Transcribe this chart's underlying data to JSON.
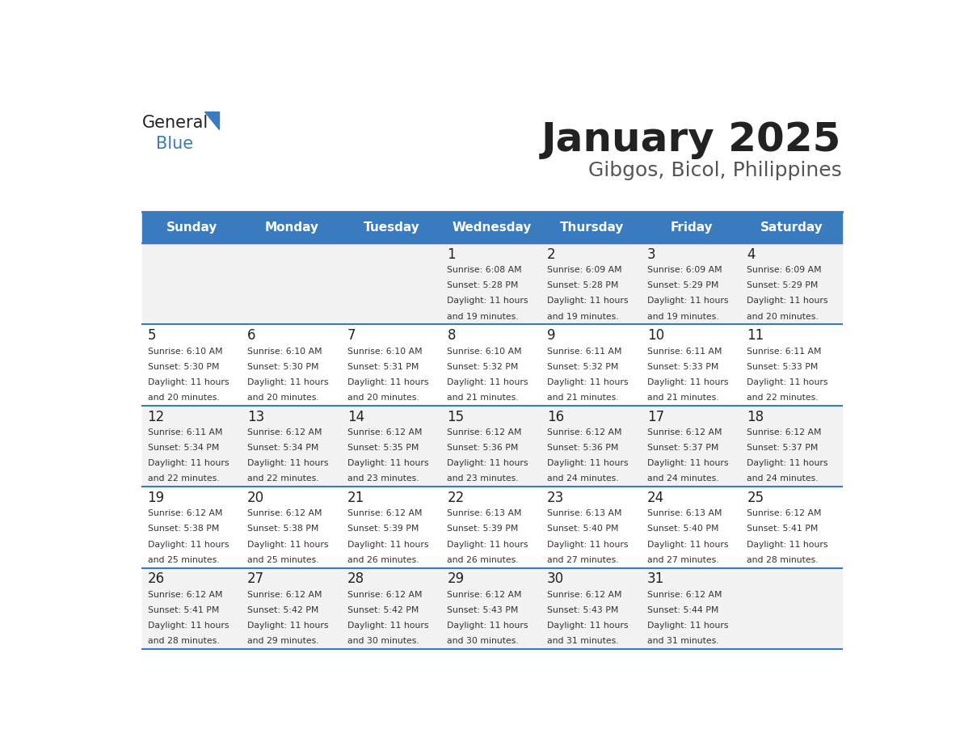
{
  "title": "January 2025",
  "subtitle": "Gibgos, Bicol, Philippines",
  "days_of_week": [
    "Sunday",
    "Monday",
    "Tuesday",
    "Wednesday",
    "Thursday",
    "Friday",
    "Saturday"
  ],
  "header_bg": "#3a7abf",
  "header_text": "#ffffff",
  "row_bg_odd": "#f2f2f2",
  "row_bg_even": "#ffffff",
  "cell_text_color": "#333333",
  "day_num_color": "#222222",
  "title_color": "#222222",
  "subtitle_color": "#555555",
  "divider_color": "#3a7abf",
  "logo_general_color": "#222222",
  "logo_blue_color": "#3a7abf",
  "calendar": [
    [
      {
        "day": null,
        "sunrise": null,
        "sunset": null,
        "daylight": null
      },
      {
        "day": null,
        "sunrise": null,
        "sunset": null,
        "daylight": null
      },
      {
        "day": null,
        "sunrise": null,
        "sunset": null,
        "daylight": null
      },
      {
        "day": 1,
        "sunrise": "6:08 AM",
        "sunset": "5:28 PM",
        "daylight": "11 hours and 19 minutes."
      },
      {
        "day": 2,
        "sunrise": "6:09 AM",
        "sunset": "5:28 PM",
        "daylight": "11 hours and 19 minutes."
      },
      {
        "day": 3,
        "sunrise": "6:09 AM",
        "sunset": "5:29 PM",
        "daylight": "11 hours and 19 minutes."
      },
      {
        "day": 4,
        "sunrise": "6:09 AM",
        "sunset": "5:29 PM",
        "daylight": "11 hours and 20 minutes."
      }
    ],
    [
      {
        "day": 5,
        "sunrise": "6:10 AM",
        "sunset": "5:30 PM",
        "daylight": "11 hours and 20 minutes."
      },
      {
        "day": 6,
        "sunrise": "6:10 AM",
        "sunset": "5:30 PM",
        "daylight": "11 hours and 20 minutes."
      },
      {
        "day": 7,
        "sunrise": "6:10 AM",
        "sunset": "5:31 PM",
        "daylight": "11 hours and 20 minutes."
      },
      {
        "day": 8,
        "sunrise": "6:10 AM",
        "sunset": "5:32 PM",
        "daylight": "11 hours and 21 minutes."
      },
      {
        "day": 9,
        "sunrise": "6:11 AM",
        "sunset": "5:32 PM",
        "daylight": "11 hours and 21 minutes."
      },
      {
        "day": 10,
        "sunrise": "6:11 AM",
        "sunset": "5:33 PM",
        "daylight": "11 hours and 21 minutes."
      },
      {
        "day": 11,
        "sunrise": "6:11 AM",
        "sunset": "5:33 PM",
        "daylight": "11 hours and 22 minutes."
      }
    ],
    [
      {
        "day": 12,
        "sunrise": "6:11 AM",
        "sunset": "5:34 PM",
        "daylight": "11 hours and 22 minutes."
      },
      {
        "day": 13,
        "sunrise": "6:12 AM",
        "sunset": "5:34 PM",
        "daylight": "11 hours and 22 minutes."
      },
      {
        "day": 14,
        "sunrise": "6:12 AM",
        "sunset": "5:35 PM",
        "daylight": "11 hours and 23 minutes."
      },
      {
        "day": 15,
        "sunrise": "6:12 AM",
        "sunset": "5:36 PM",
        "daylight": "11 hours and 23 minutes."
      },
      {
        "day": 16,
        "sunrise": "6:12 AM",
        "sunset": "5:36 PM",
        "daylight": "11 hours and 24 minutes."
      },
      {
        "day": 17,
        "sunrise": "6:12 AM",
        "sunset": "5:37 PM",
        "daylight": "11 hours and 24 minutes."
      },
      {
        "day": 18,
        "sunrise": "6:12 AM",
        "sunset": "5:37 PM",
        "daylight": "11 hours and 24 minutes."
      }
    ],
    [
      {
        "day": 19,
        "sunrise": "6:12 AM",
        "sunset": "5:38 PM",
        "daylight": "11 hours and 25 minutes."
      },
      {
        "day": 20,
        "sunrise": "6:12 AM",
        "sunset": "5:38 PM",
        "daylight": "11 hours and 25 minutes."
      },
      {
        "day": 21,
        "sunrise": "6:12 AM",
        "sunset": "5:39 PM",
        "daylight": "11 hours and 26 minutes."
      },
      {
        "day": 22,
        "sunrise": "6:13 AM",
        "sunset": "5:39 PM",
        "daylight": "11 hours and 26 minutes."
      },
      {
        "day": 23,
        "sunrise": "6:13 AM",
        "sunset": "5:40 PM",
        "daylight": "11 hours and 27 minutes."
      },
      {
        "day": 24,
        "sunrise": "6:13 AM",
        "sunset": "5:40 PM",
        "daylight": "11 hours and 27 minutes."
      },
      {
        "day": 25,
        "sunrise": "6:12 AM",
        "sunset": "5:41 PM",
        "daylight": "11 hours and 28 minutes."
      }
    ],
    [
      {
        "day": 26,
        "sunrise": "6:12 AM",
        "sunset": "5:41 PM",
        "daylight": "11 hours and 28 minutes."
      },
      {
        "day": 27,
        "sunrise": "6:12 AM",
        "sunset": "5:42 PM",
        "daylight": "11 hours and 29 minutes."
      },
      {
        "day": 28,
        "sunrise": "6:12 AM",
        "sunset": "5:42 PM",
        "daylight": "11 hours and 30 minutes."
      },
      {
        "day": 29,
        "sunrise": "6:12 AM",
        "sunset": "5:43 PM",
        "daylight": "11 hours and 30 minutes."
      },
      {
        "day": 30,
        "sunrise": "6:12 AM",
        "sunset": "5:43 PM",
        "daylight": "11 hours and 31 minutes."
      },
      {
        "day": 31,
        "sunrise": "6:12 AM",
        "sunset": "5:44 PM",
        "daylight": "11 hours and 31 minutes."
      },
      {
        "day": null,
        "sunrise": null,
        "sunset": null,
        "daylight": null
      }
    ]
  ]
}
